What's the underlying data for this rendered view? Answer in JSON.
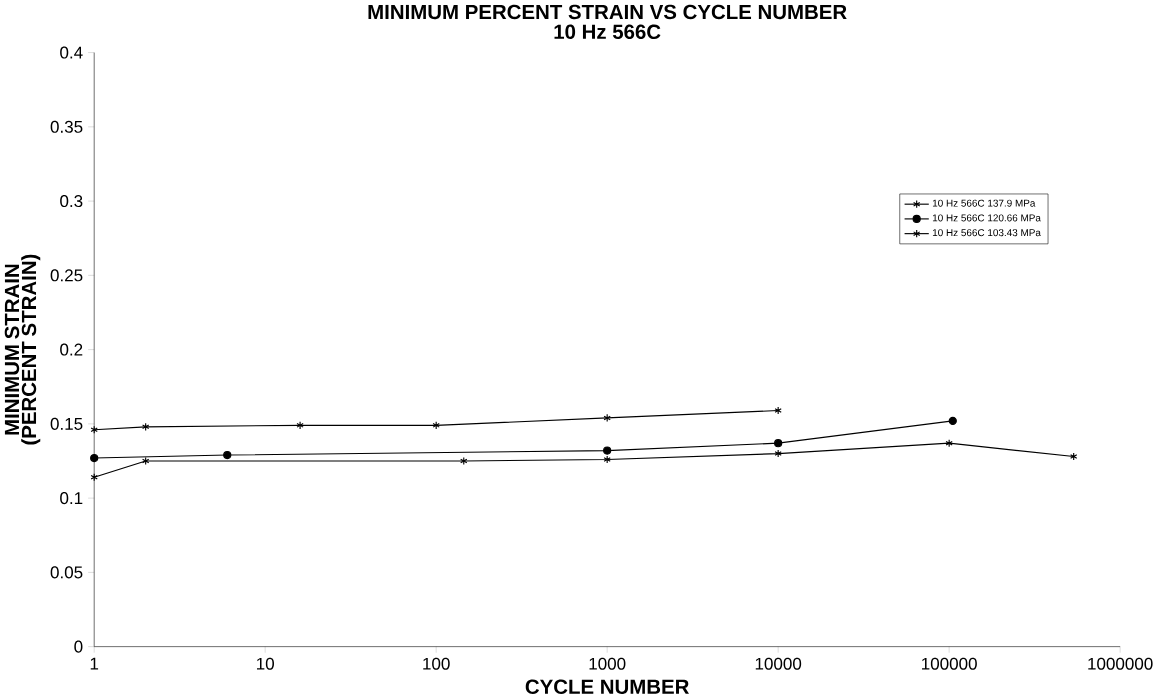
{
  "chart_data": {
    "type": "line",
    "title": "MINIMUM PERCENT STRAIN VS CYCLE NUMBER",
    "subtitle": "10 Hz 566C",
    "xlabel": "CYCLE NUMBER",
    "ylabel": "MINIMUM STRAIN (PERCENT STRAIN)",
    "log": "x",
    "xlim": [
      1,
      1000000
    ],
    "ylim": [
      0,
      0.4
    ],
    "xticks": [
      1,
      10,
      100,
      1000,
      10000,
      100000,
      1000000
    ],
    "yticks": [
      0,
      0.05,
      0.1,
      0.15,
      0.2,
      0.25,
      0.3,
      0.35,
      0.4
    ],
    "legend": "right",
    "grid": false,
    "series": [
      {
        "name": "10 Hz 566C 137.9 MPa",
        "color": "#000000",
        "marker": "cross",
        "x": [
          1,
          2,
          16,
          100,
          1000,
          10000
        ],
        "values": [
          0.146,
          0.148,
          0.149,
          0.149,
          0.154,
          0.159
        ]
      },
      {
        "name": "10 Hz 566C 120.66 MPa",
        "color": "#000000",
        "marker": "circle",
        "x": [
          1,
          6,
          1000,
          10000,
          105000
        ],
        "values": [
          0.127,
          0.129,
          0.132,
          0.137,
          0.152
        ]
      },
      {
        "name": "10 Hz 566C 103.43 MPa",
        "color": "#000000",
        "marker": "cross",
        "x": [
          1,
          2,
          145,
          1000,
          10000,
          100000,
          535000
        ],
        "values": [
          0.114,
          0.125,
          0.125,
          0.126,
          0.13,
          0.137,
          0.128
        ]
      }
    ]
  }
}
